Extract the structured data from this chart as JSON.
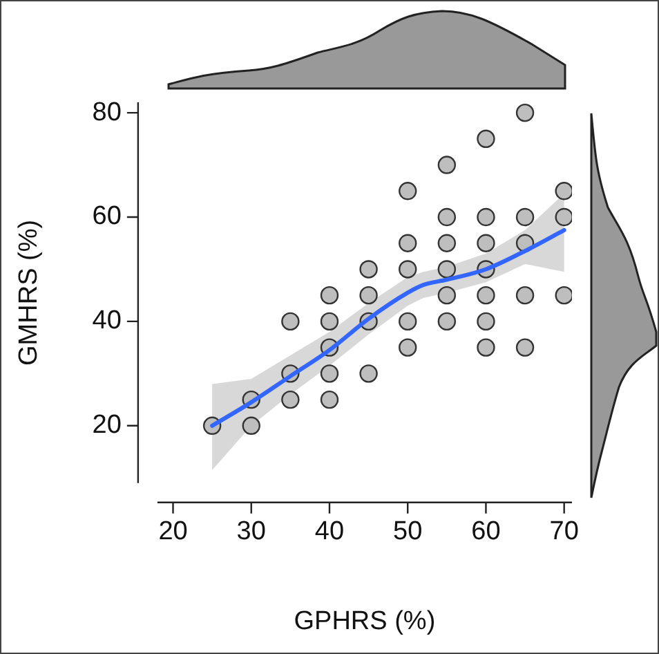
{
  "chart_data": {
    "type": "scatter",
    "xlabel": "GPHRS (%)",
    "ylabel": "GMHRS (%)",
    "xlim": [
      18,
      71
    ],
    "ylim": [
      9,
      82
    ],
    "xticks": [
      20,
      30,
      40,
      50,
      60,
      70
    ],
    "yticks": [
      20,
      40,
      60,
      80
    ],
    "grid": false,
    "legend": false,
    "series": [
      {
        "marker": "circle",
        "color": "#bebebe",
        "x": [
          25,
          30,
          30,
          35,
          35,
          35,
          40,
          40,
          40,
          40,
          40,
          45,
          45,
          45,
          45,
          50,
          50,
          50,
          50,
          50,
          55,
          55,
          55,
          55,
          55,
          55,
          60,
          60,
          60,
          60,
          60,
          60,
          60,
          65,
          65,
          65,
          65,
          65,
          70,
          70,
          70
        ],
        "values": [
          20,
          20,
          25,
          40,
          30,
          25,
          45,
          40,
          35,
          30,
          25,
          50,
          45,
          40,
          30,
          65,
          55,
          50,
          40,
          35,
          70,
          60,
          55,
          50,
          45,
          40,
          75,
          60,
          55,
          50,
          45,
          40,
          35,
          80,
          60,
          55,
          45,
          35,
          65,
          60,
          45
        ]
      },
      {
        "type": "line",
        "color": "#3366ff",
        "line_style": "solid",
        "x": [
          25,
          30,
          35,
          40,
          45,
          50,
          52,
          55,
          60,
          65,
          70
        ],
        "values": [
          20,
          24.5,
          29.5,
          34.5,
          40.5,
          45.5,
          47,
          48,
          50,
          53.5,
          57.5
        ],
        "lower": [
          11.5,
          20,
          26,
          31.5,
          37.5,
          43,
          44.5,
          45.5,
          47.5,
          51,
          49.5
        ],
        "upper": [
          28,
          29,
          33.5,
          38,
          43.5,
          48.5,
          49.5,
          50.5,
          53,
          57.5,
          64.5
        ]
      }
    ]
  }
}
